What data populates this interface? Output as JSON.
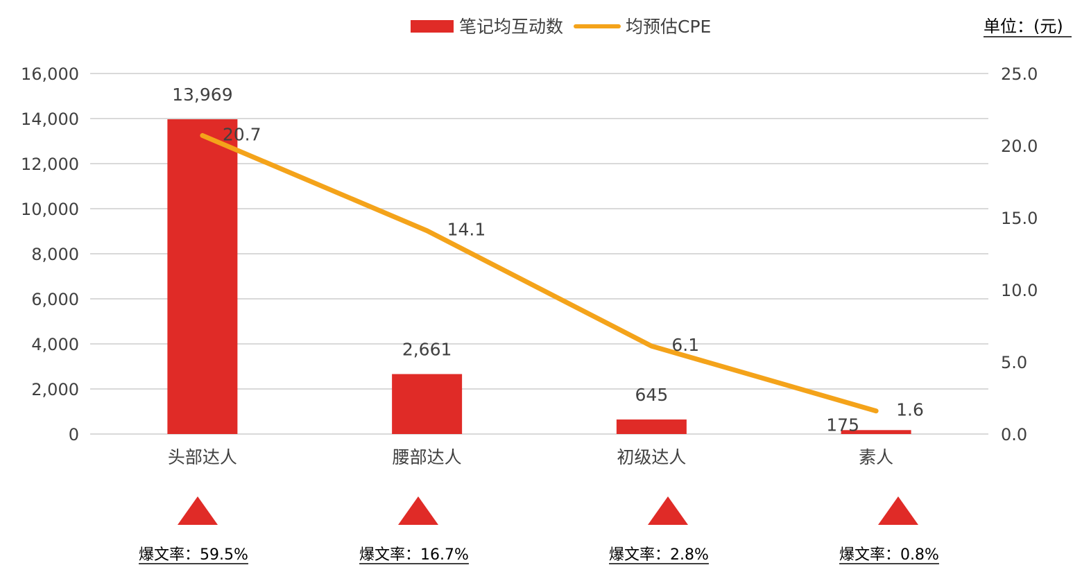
{
  "legend": {
    "bar_label": "笔记均互动数",
    "line_label": "均预估CPE"
  },
  "unit_label": "单位：(元)",
  "colors": {
    "bar": "#e02b27",
    "line": "#f4a31a",
    "grid": "#d9d9d9",
    "triangle": "#e02b27",
    "text": "#404040"
  },
  "chart_data": {
    "type": "bar",
    "categories": [
      "头部达人",
      "腰部达人",
      "初级达人",
      "素人"
    ],
    "series": [
      {
        "name": "笔记均互动数",
        "type": "bar",
        "axis": "left",
        "values": [
          13969,
          2661,
          645,
          175
        ],
        "labels": [
          "13,969",
          "2,661",
          "645",
          "175"
        ]
      },
      {
        "name": "均预估CPE",
        "type": "line",
        "axis": "right",
        "values": [
          20.7,
          14.1,
          6.1,
          1.6
        ],
        "labels": [
          "20.7",
          "14.1",
          "6.1",
          "1.6"
        ]
      }
    ],
    "y_left": {
      "range": [
        0,
        16000
      ],
      "ticks": [
        "0",
        "2,000",
        "4,000",
        "6,000",
        "8,000",
        "10,000",
        "12,000",
        "14,000",
        "16,000"
      ]
    },
    "y_right": {
      "range": [
        0,
        25
      ],
      "ticks": [
        "0.0",
        "5.0",
        "10.0",
        "15.0",
        "20.0",
        "25.0"
      ]
    },
    "grid": true,
    "legend_position": "top"
  },
  "annotations": {
    "marker_icon": "triangle-up-icon",
    "rates": [
      "爆文率：59.5%",
      "爆文率：16.7%",
      "爆文率：2.8%",
      "爆文率：0.8%"
    ]
  }
}
